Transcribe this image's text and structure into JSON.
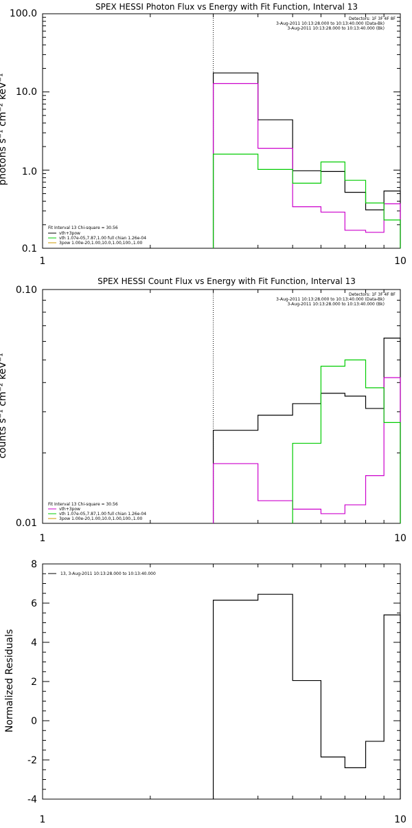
{
  "chart_data": [
    {
      "type": "line",
      "title": "SPEX HESSI Photon Flux vs Energy with Fit Function, Interval 13",
      "ylabel": "photons s⁻¹ cm⁻² keV⁻¹",
      "xscale": "log",
      "yscale": "log",
      "xlim": [
        1,
        10
      ],
      "ylim": [
        0.1,
        100
      ],
      "x_ticks": [
        "1",
        "10"
      ],
      "y_ticks": [
        "0.1",
        "1.0",
        "10.0",
        "100.0"
      ],
      "detectors": "Detectors: 1F 3F 4F 8F",
      "header_lines": [
        "3-Aug-2011 10:13:28.000 to 10:13:40.000 (Data-Bk)",
        "3-Aug-2011 10:13:28.000 to 10:13:40.000 (Bk)"
      ],
      "legend": [
        "Fit Interval 13   Chi-square = 30.56",
        "vth+3pow",
        "vth 1.07e-05,7.87,1.00  full chian 1.26e-04",
        "3pow 1.00e-20,1.00,10.0,1.00,100.,1.00"
      ],
      "vline_x": 3,
      "bin_edges": [
        3,
        4,
        5,
        6,
        7,
        8,
        9,
        10
      ],
      "series": [
        {
          "color": "#000000",
          "values": [
            17.5,
            4.4,
            0.98,
            0.96,
            0.52,
            0.31,
            0.54
          ]
        },
        {
          "color": "#cc00cc",
          "values": [
            12.8,
            1.9,
            0.34,
            0.29,
            0.17,
            0.16,
            0.37
          ]
        },
        {
          "color": "#00cc00",
          "values": [
            1.6,
            1.02,
            0.68,
            1.27,
            0.74,
            0.38,
            0.23
          ]
        }
      ]
    },
    {
      "type": "line",
      "title": "SPEX HESSI Count Flux vs Energy with Fit Function, Interval 13",
      "ylabel": "counts s⁻¹ cm⁻² keV⁻¹",
      "xscale": "log",
      "yscale": "log",
      "xlim": [
        1,
        10
      ],
      "ylim": [
        0.01,
        0.1
      ],
      "x_ticks": [
        "1",
        "10"
      ],
      "y_ticks": [
        "0.01",
        "0.10"
      ],
      "detectors": "Detectors: 1F 3F 4F 8F",
      "header_lines": [
        "3-Aug-2011 10:13:28.000 to 10:13:40.000 (Data-Bk)",
        "3-Aug-2011 10:13:28.000 to 10:13:40.000 (Bk)"
      ],
      "legend": [
        "Fit Interval 13   Chi-square = 30.56",
        "vth+3pow",
        "vth 1.07e-05,7.87,1.00  full chian 1.26e-04",
        "3pow 1.00e-20,1.00,10.0,1.00,100.,1.00"
      ],
      "vline_x": 3,
      "bin_edges": [
        3,
        4,
        5,
        6,
        7,
        8,
        9,
        10
      ],
      "series": [
        {
          "color": "#000000",
          "values": [
            0.025,
            0.029,
            0.0325,
            0.036,
            0.035,
            0.031,
            0.062
          ]
        },
        {
          "color": "#cc00cc",
          "values": [
            0.018,
            0.0125,
            0.0115,
            0.011,
            0.012,
            0.016,
            0.042
          ]
        },
        {
          "color": "#00cc00",
          "values": [
            null,
            null,
            0.022,
            0.047,
            0.05,
            0.038,
            0.027
          ]
        }
      ]
    },
    {
      "type": "line",
      "title": "",
      "ylabel": "Normalized Residuals",
      "xscale": "log",
      "yscale": "linear",
      "xlim": [
        1,
        10
      ],
      "ylim": [
        -4,
        8
      ],
      "x_ticks": [
        "1",
        "10"
      ],
      "y_ticks": [
        "-4",
        "-2",
        "0",
        "2",
        "4",
        "6",
        "8"
      ],
      "legend": [
        "13,  3-Aug-2011 10:13:28.000 to 10:13:40.000"
      ],
      "bin_edges": [
        3,
        4,
        5,
        6,
        7,
        8,
        9,
        10
      ],
      "series": [
        {
          "color": "#000000",
          "values": [
            6.15,
            6.45,
            2.05,
            -1.85,
            -2.4,
            -1.05,
            5.4
          ]
        }
      ]
    }
  ]
}
